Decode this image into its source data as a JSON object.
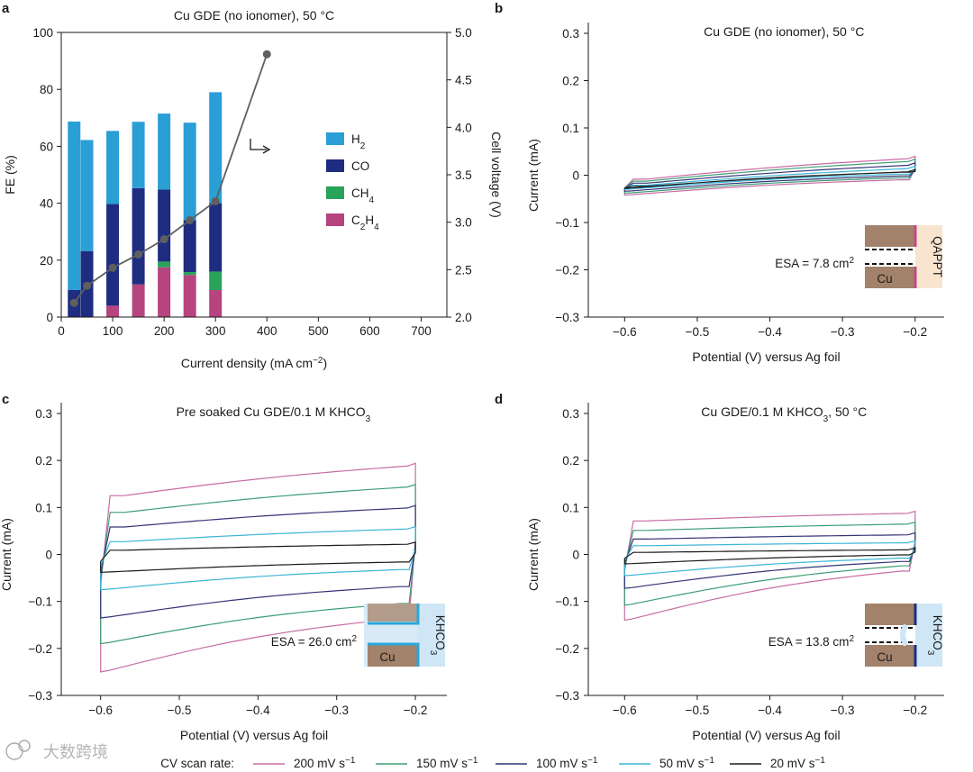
{
  "colors": {
    "h2": "#2a9fd6",
    "co": "#1e2d80",
    "ch4": "#27a35a",
    "c2h4": "#b5447f",
    "line": "#5f5f5f",
    "s200": "#c86ba6",
    "s150": "#3d9d74",
    "s100": "#343477",
    "s50": "#3bb5d6",
    "s20": "#1a1a1a"
  },
  "watermark": "大数跨境",
  "bottom_legend": {
    "title": "CV scan rate:",
    "entries": [
      {
        "label": "200 mV s",
        "sup": "−1",
        "color_key": "s200"
      },
      {
        "label": "150 mV s",
        "sup": "−1",
        "color_key": "s150"
      },
      {
        "label": "100 mV s",
        "sup": "−1",
        "color_key": "s100"
      },
      {
        "label": "50 mV s",
        "sup": "−1",
        "color_key": "s50"
      },
      {
        "label": "20 mV s",
        "sup": "−1",
        "color_key": "s20"
      }
    ]
  },
  "chart_data": [
    {
      "panel": "a",
      "type": "bar",
      "title": "Cu GDE (no ionomer), 50 °C",
      "xlabel": "Current density (mA cm",
      "xlabel_sup": "−2",
      "xlabel_end": ")",
      "ylabel": "FE (%)",
      "y2label": "Cell voltage (V)",
      "xlim": [
        0,
        750
      ],
      "ylim": [
        0,
        100
      ],
      "y2lim": [
        2.0,
        5.0
      ],
      "xticks": [
        "0",
        "100",
        "200",
        "300",
        "400",
        "500",
        "600",
        "700"
      ],
      "yticks": [
        "0",
        "20",
        "40",
        "60",
        "80",
        "100"
      ],
      "y2ticks": [
        "2.0",
        "2.5",
        "3.0",
        "3.5",
        "4.0",
        "4.5",
        "5.0"
      ],
      "legend": [
        {
          "label": "H",
          "sub": "2",
          "color_key": "h2"
        },
        {
          "label": "CO",
          "sub": "",
          "color_key": "co"
        },
        {
          "label": "CH",
          "sub": "4",
          "color_key": "ch4"
        },
        {
          "label": "C",
          "sub": "2",
          "label2": "H",
          "sub2": "4",
          "color_key": "c2h4"
        }
      ],
      "categories": [
        25,
        50,
        100,
        150,
        200,
        250,
        300
      ],
      "series": [
        {
          "name": "C2H4",
          "values": [
            0,
            0,
            4,
            11.5,
            17.5,
            14.8,
            9.5
          ]
        },
        {
          "name": "CH4",
          "values": [
            0,
            0,
            0,
            0,
            2,
            1,
            6.5
          ]
        },
        {
          "name": "CO",
          "values": [
            9.5,
            23.2,
            35.7,
            33.8,
            25.3,
            18.2,
            24
          ]
        },
        {
          "name": "H2",
          "values": [
            59.2,
            39.0,
            25.7,
            23.3,
            26.7,
            34.3,
            39
          ]
        }
      ],
      "voltage_line": {
        "x": [
          25,
          50,
          100,
          150,
          200,
          250,
          300,
          400
        ],
        "y": [
          2.15,
          2.33,
          2.52,
          2.66,
          2.82,
          3.02,
          3.22,
          4.77
        ]
      },
      "arrow": "right"
    },
    {
      "panel": "b",
      "type": "line",
      "title": "Cu GDE (no ionomer), 50 °C",
      "xlabel": "Potential (V) versus Ag foil",
      "ylabel": "Current (mA)",
      "xlim": [
        -0.65,
        -0.16
      ],
      "ylim": [
        -0.3,
        0.3
      ],
      "xticks": [
        "−0.6",
        "−0.5",
        "−0.4",
        "−0.3",
        "−0.2"
      ],
      "yticks": [
        "−0.3",
        "−0.2",
        "−0.1",
        "0",
        "0.1",
        "0.2",
        "0.3"
      ],
      "esa": "ESA = 7.8 cm",
      "esa_sup": "2",
      "inset": "ionomer",
      "inset_label": "QAPPT",
      "inset_cu": "Cu",
      "series": [
        {
          "name": "200 mV s−1",
          "color_key": "s200",
          "top": [
            -0.012,
            0.036
          ],
          "bot": [
            -0.042,
            -0.008
          ]
        },
        {
          "name": "150 mV s−1",
          "color_key": "s150",
          "top": [
            -0.016,
            0.03
          ],
          "bot": [
            -0.038,
            -0.004
          ]
        },
        {
          "name": "100 mV s−1",
          "color_key": "s100",
          "top": [
            -0.02,
            0.022
          ],
          "bot": [
            -0.034,
            0.0
          ]
        },
        {
          "name": "50 mV s−1",
          "color_key": "s50",
          "top": [
            -0.024,
            0.015
          ],
          "bot": [
            -0.03,
            0.004
          ]
        },
        {
          "name": "20 mV s−1",
          "color_key": "s20",
          "top": [
            -0.026,
            0.008
          ],
          "bot": [
            -0.028,
            0.008
          ]
        }
      ]
    },
    {
      "panel": "c",
      "type": "line",
      "title": "Pre soaked Cu GDE/0.1 M KHCO",
      "title_sub": "3",
      "xlabel": "Potential (V) versus Ag foil",
      "ylabel": "Current (mA)",
      "xlim": [
        -0.65,
        -0.16
      ],
      "ylim": [
        -0.3,
        0.3
      ],
      "xticks": [
        "−0.6",
        "−0.5",
        "−0.4",
        "−0.3",
        "−0.2"
      ],
      "yticks": [
        "−0.3",
        "−0.2",
        "−0.1",
        "0",
        "0.1",
        "0.2",
        "0.3"
      ],
      "esa": "ESA = 26.0 cm",
      "esa_sup": "2",
      "inset": "soaked",
      "inset_label": "KHCO",
      "inset_label_sub": "3",
      "inset_cu": "Cu",
      "series": [
        {
          "name": "200 mV s−1",
          "color_key": "s200",
          "top": [
            0.12,
            0.19
          ],
          "bot": [
            -0.25,
            -0.13
          ]
        },
        {
          "name": "150 mV s−1",
          "color_key": "s150",
          "top": [
            0.085,
            0.145
          ],
          "bot": [
            -0.19,
            -0.1
          ]
        },
        {
          "name": "100 mV s−1",
          "color_key": "s100",
          "top": [
            0.055,
            0.1
          ],
          "bot": [
            -0.135,
            -0.065
          ]
        },
        {
          "name": "50 mV s−1",
          "color_key": "s50",
          "top": [
            0.025,
            0.055
          ],
          "bot": [
            -0.075,
            -0.03
          ]
        },
        {
          "name": "20 mV s−1",
          "color_key": "s20",
          "top": [
            0.008,
            0.022
          ],
          "bot": [
            -0.038,
            -0.015
          ]
        }
      ]
    },
    {
      "panel": "d",
      "type": "line",
      "title": "Cu GDE/0.1 M KHCO",
      "title_sub": "3",
      "title_end": ", 50 °C",
      "xlabel": "Potential (V) versus Ag foil",
      "ylabel": "Current (mA)",
      "xlim": [
        -0.65,
        -0.16
      ],
      "ylim": [
        -0.3,
        0.3
      ],
      "xticks": [
        "−0.6",
        "−0.5",
        "−0.4",
        "−0.3",
        "−0.2"
      ],
      "yticks": [
        "−0.3",
        "−0.2",
        "−0.1",
        "0",
        "0.1",
        "0.2",
        "0.3"
      ],
      "esa": "ESA = 13.8 cm",
      "esa_sup": "2",
      "inset": "electrolyte",
      "inset_label": "KHCO",
      "inset_label_sub": "3",
      "inset_cu": "Cu",
      "series": [
        {
          "name": "200 mV s−1",
          "color_key": "s200",
          "top": [
            0.07,
            0.088
          ],
          "bot": [
            -0.14,
            -0.03
          ]
        },
        {
          "name": "150 mV s−1",
          "color_key": "s150",
          "top": [
            0.05,
            0.065
          ],
          "bot": [
            -0.108,
            -0.02
          ]
        },
        {
          "name": "100 mV s−1",
          "color_key": "s100",
          "top": [
            0.032,
            0.042
          ],
          "bot": [
            -0.072,
            -0.012
          ]
        },
        {
          "name": "50 mV s−1",
          "color_key": "s50",
          "top": [
            0.018,
            0.025
          ],
          "bot": [
            -0.045,
            -0.006
          ]
        },
        {
          "name": "20 mV s−1",
          "color_key": "s20",
          "top": [
            0.004,
            0.01
          ],
          "bot": [
            -0.02,
            0.0
          ]
        }
      ]
    }
  ]
}
